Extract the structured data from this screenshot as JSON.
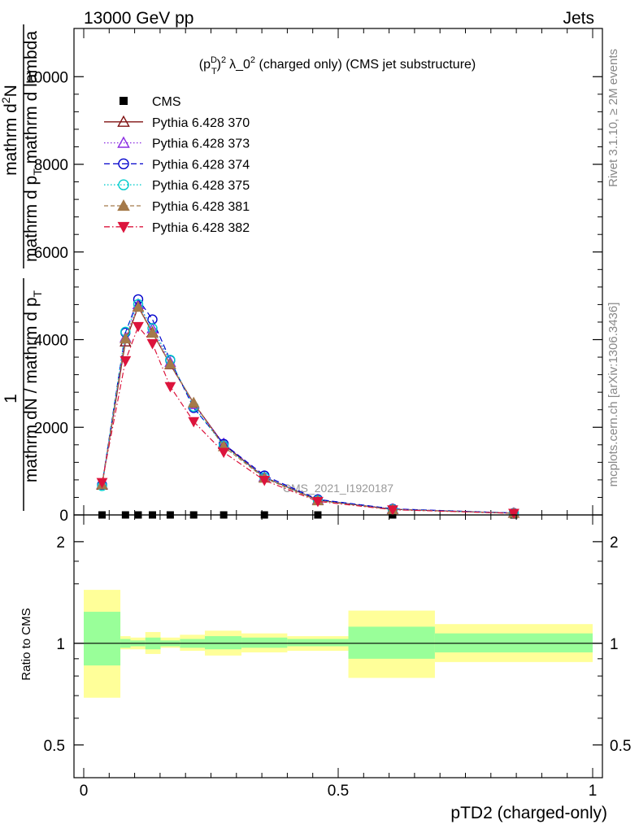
{
  "header": {
    "left": "13000 GeV pp",
    "right": "Jets"
  },
  "side_labels": {
    "rivet": "Rivet 3.1.10, ≥ 2M events",
    "mcplots": "mcplots.cern.ch [arXiv:1306.3436]"
  },
  "watermark": "CMS_2021_I1920187",
  "chart_data": [
    {
      "type": "line",
      "title": "(p_T^D)^2 λ_0^2 (charged only) (CMS jet substructure)",
      "title_parts": {
        "pre": "(p",
        "sup": "D",
        "sub": "T",
        "post": ")",
        "exp": "2",
        "mid": "λ_0",
        "exp2": "2",
        "tail": " (charged only) (CMS jet substructure)"
      },
      "ylabel_lines": [
        "1",
        "mathrm dN / mathrm d p_T",
        "mathrm d^2N / mathrm d p_T mathrm d lambda"
      ],
      "ylabel_frac": {
        "num_left": "1",
        "den_left": "mathrm dN / mathrm d p",
        "num_right": "mathrm d",
        "num_right_sup": "2",
        "num_right_tail": "N",
        "den_right": "mathrm d p",
        "den_right_sub": "T",
        "den_right_tail": " mathrm d lambda"
      },
      "xlabel": "pTD2 (charged-only)",
      "xlim": [
        0,
        1
      ],
      "ylim": [
        0,
        10000
      ],
      "y_ticks": [
        0,
        2000,
        4000,
        6000,
        8000,
        10000
      ],
      "y_tick_labels": [
        "0",
        "2000",
        "4000",
        "6000",
        "8000",
        "10000"
      ],
      "x": [
        0.036,
        0.082,
        0.107,
        0.135,
        0.17,
        0.216,
        0.275,
        0.355,
        0.46,
        0.607,
        0.845
      ],
      "series": [
        {
          "name": "CMS",
          "color": "#000000",
          "marker": "square",
          "dash": "",
          "values": [
            0,
            0,
            0,
            0,
            0,
            0,
            0,
            0,
            0,
            0,
            0
          ]
        },
        {
          "name": "Pythia 6.428 370",
          "color": "#7f1010",
          "marker": "triangle-open",
          "dash": "",
          "values": [
            680,
            3950,
            4750,
            4170,
            3430,
            2550,
            1610,
            860,
            340,
            130,
            40
          ]
        },
        {
          "name": "Pythia 6.428 373",
          "color": "#8a2be2",
          "marker": "triangle-open",
          "dash": "1.5 2.5",
          "values": [
            700,
            4050,
            4800,
            4250,
            3480,
            2520,
            1630,
            870,
            345,
            135,
            42
          ]
        },
        {
          "name": "Pythia 6.428 374",
          "color": "#0000cc",
          "marker": "circle-open",
          "dash": "7 4",
          "values": [
            690,
            4160,
            4920,
            4460,
            3530,
            2440,
            1620,
            900,
            355,
            140,
            45
          ]
        },
        {
          "name": "Pythia 6.428 375",
          "color": "#00cccc",
          "marker": "circle-open",
          "dash": "1.5 2.5",
          "values": [
            660,
            4180,
            4810,
            4260,
            3540,
            2470,
            1580,
            860,
            335,
            128,
            40
          ]
        },
        {
          "name": "Pythia 6.428 381",
          "color": "#a57a4a",
          "marker": "triangle-filled",
          "dash": "5 3",
          "values": [
            690,
            4020,
            4740,
            4150,
            3440,
            2560,
            1560,
            840,
            325,
            122,
            38
          ]
        },
        {
          "name": "Pythia 6.428 382",
          "color": "#dc143c",
          "marker": "triangle-down-filled",
          "dash": "7 3 1.5 3",
          "values": [
            740,
            3520,
            4300,
            3910,
            2930,
            2130,
            1430,
            790,
            310,
            118,
            37
          ]
        }
      ]
    },
    {
      "type": "area",
      "ylabel": "Ratio to CMS",
      "xlim": [
        0,
        1
      ],
      "ylim": [
        0.4,
        2.4
      ],
      "y_ticks": [
        0.5,
        1,
        2
      ],
      "y_tick_labels": [
        "0.5",
        "1",
        "2"
      ],
      "x_ticks": [
        0,
        0.5,
        1
      ],
      "x_tick_labels": [
        "0",
        "0.5",
        "1"
      ],
      "reference_line": 1,
      "bands": {
        "inner_color": "#99ff99",
        "outer_color": "#ffff99",
        "bins": [
          {
            "lo": 0.0,
            "hi": 0.072,
            "inner": [
              0.86,
              1.24
            ],
            "outer": [
              0.69,
              1.44
            ]
          },
          {
            "lo": 0.072,
            "hi": 0.092,
            "inner": [
              0.97,
              1.03
            ],
            "outer": [
              0.96,
              1.05
            ]
          },
          {
            "lo": 0.092,
            "hi": 0.121,
            "inner": [
              0.98,
              1.02
            ],
            "outer": [
              0.96,
              1.04
            ]
          },
          {
            "lo": 0.121,
            "hi": 0.151,
            "inner": [
              0.96,
              1.04
            ],
            "outer": [
              0.93,
              1.08
            ]
          },
          {
            "lo": 0.151,
            "hi": 0.189,
            "inner": [
              0.98,
              1.02
            ],
            "outer": [
              0.97,
              1.04
            ]
          },
          {
            "lo": 0.189,
            "hi": 0.238,
            "inner": [
              0.97,
              1.03
            ],
            "outer": [
              0.95,
              1.06
            ]
          },
          {
            "lo": 0.238,
            "hi": 0.31,
            "inner": [
              0.96,
              1.05
            ],
            "outer": [
              0.92,
              1.09
            ]
          },
          {
            "lo": 0.31,
            "hi": 0.4,
            "inner": [
              0.97,
              1.04
            ],
            "outer": [
              0.94,
              1.07
            ]
          },
          {
            "lo": 0.4,
            "hi": 0.52,
            "inner": [
              0.98,
              1.03
            ],
            "outer": [
              0.95,
              1.05
            ]
          },
          {
            "lo": 0.52,
            "hi": 0.69,
            "inner": [
              0.9,
              1.12
            ],
            "outer": [
              0.79,
              1.25
            ]
          },
          {
            "lo": 0.69,
            "hi": 1.0,
            "inner": [
              0.94,
              1.07
            ],
            "outer": [
              0.88,
              1.14
            ]
          }
        ]
      }
    }
  ]
}
